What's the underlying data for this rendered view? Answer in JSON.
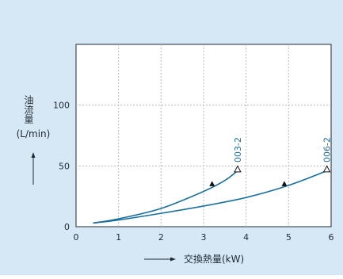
{
  "chart_data": {
    "type": "line",
    "xlabel": "交換熱量(kW)",
    "ylabel": "油流量",
    "ylabel_unit": "(L/min)",
    "xlim": [
      0,
      6
    ],
    "ylim": [
      0,
      150
    ],
    "x_ticks": [
      "0",
      "1",
      "2",
      "3",
      "4",
      "5",
      "6"
    ],
    "y_ticks": [
      "0",
      "50",
      "100"
    ],
    "grid": true,
    "colors": {
      "line": "#1a6e9e",
      "background": "#d6e8f5",
      "plot": "#ffffff",
      "grid": "#b9b9b9"
    },
    "series": [
      {
        "name": "003-2",
        "x": [
          0.4,
          1.0,
          2.0,
          3.0,
          3.5,
          3.8
        ],
        "y": [
          3,
          6.5,
          15,
          29,
          38,
          46
        ],
        "marker_filled": {
          "x": 3.2,
          "y": 35
        },
        "marker_open": {
          "x": 3.8,
          "y": 47
        }
      },
      {
        "name": "006-2",
        "x": [
          0.4,
          1.0,
          2.0,
          3.0,
          4.0,
          5.0,
          5.9
        ],
        "y": [
          3,
          5.5,
          11,
          17,
          24,
          34,
          46
        ],
        "marker_filled": {
          "x": 4.9,
          "y": 35
        },
        "marker_open": {
          "x": 5.9,
          "y": 47
        }
      }
    ]
  }
}
